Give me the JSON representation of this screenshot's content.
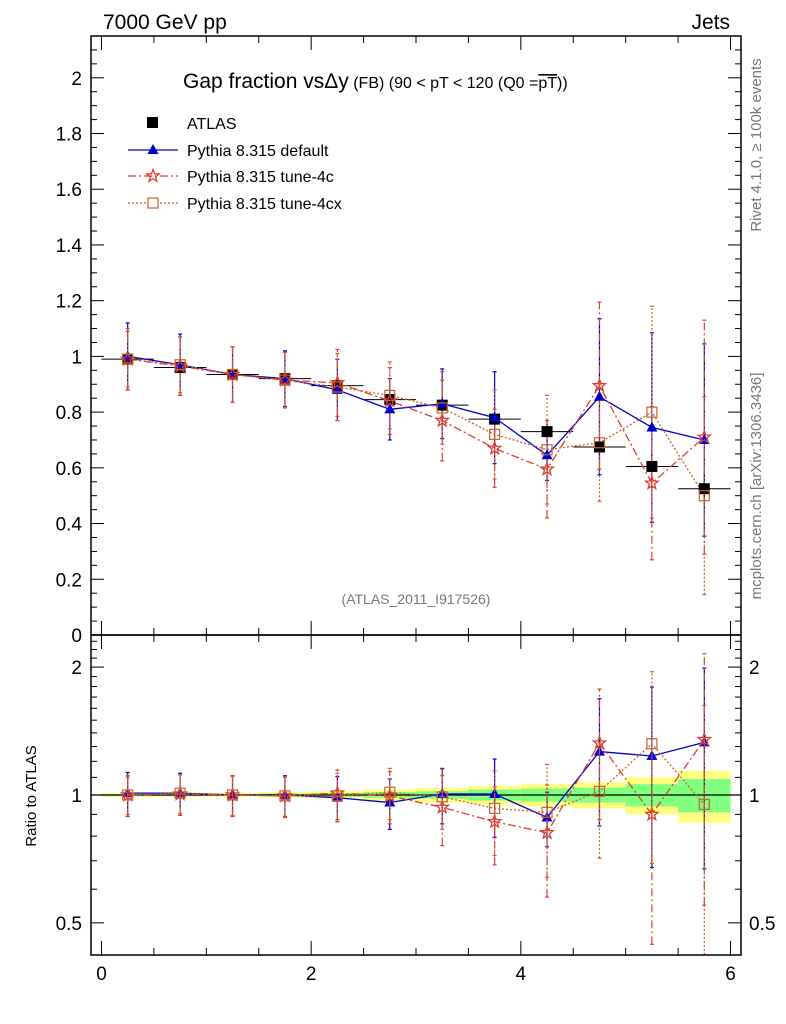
{
  "header": {
    "left": "7000 GeV pp",
    "right": "Jets"
  },
  "side": {
    "rivet": "Rivet 4.1.0, ≥ 100k events",
    "mcplots": "mcplots.cern.ch [arXiv:1306.3436]"
  },
  "colors": {
    "atlas": "#000000",
    "default": "#0000cc",
    "tune4c": "#e03c32",
    "tune4cx": "#c8642a",
    "band_yellow": "#ffff80",
    "band_green": "#80ff80"
  },
  "chart_data": {
    "type": "scatter",
    "title": {
      "main": "Gap fraction vs",
      "delta": "Δy",
      "fb": " (FB)",
      "range": " (90 < pT < 120 (Q0 =",
      "q0": "pT",
      "close": "))"
    },
    "annotation": "(ATLAS_2011_I917526)",
    "xlim": [
      -0.1,
      6.1
    ],
    "main": {
      "ylim": [
        0,
        2.15
      ],
      "yticks": [
        {
          "v": 0,
          "label": "0"
        },
        {
          "v": 0.2,
          "label": "0.2"
        },
        {
          "v": 0.4,
          "label": "0.4"
        },
        {
          "v": 0.6,
          "label": "0.6"
        },
        {
          "v": 0.8,
          "label": "0.8"
        },
        {
          "v": 1.0,
          "label": "1"
        },
        {
          "v": 1.2,
          "label": "1.2"
        },
        {
          "v": 1.4,
          "label": "1.4"
        },
        {
          "v": 1.6,
          "label": "1.6"
        },
        {
          "v": 1.8,
          "label": "1.8"
        },
        {
          "v": 2.0,
          "label": "2"
        }
      ]
    },
    "ratio": {
      "ylabel": "Ratio to ATLAS",
      "ylim": [
        0.42,
        2.38
      ],
      "log": true,
      "yticks": [
        {
          "v": 0.5,
          "label": "0.5"
        },
        {
          "v": 1,
          "label": "1"
        },
        {
          "v": 2,
          "label": "2"
        }
      ]
    },
    "xticks": [
      {
        "v": 0,
        "label": "0"
      },
      {
        "v": 2,
        "label": "2"
      },
      {
        "v": 4,
        "label": "4"
      },
      {
        "v": 6,
        "label": "6"
      }
    ],
    "x": [
      0.25,
      0.75,
      1.25,
      1.75,
      2.25,
      2.75,
      3.25,
      3.75,
      4.25,
      4.75,
      5.25,
      5.75
    ],
    "xerr": 0.25,
    "data": {
      "name": "ATLAS",
      "values": [
        0.99,
        0.96,
        0.935,
        0.92,
        0.895,
        0.845,
        0.825,
        0.775,
        0.73,
        0.675,
        0.605,
        0.525
      ],
      "err": [
        0.01,
        0.01,
        0.01,
        0.01,
        0.01,
        0.015,
        0.02,
        0.025,
        0.04,
        0.04,
        0.05,
        0.06
      ]
    },
    "series": [
      {
        "name": "Pythia 8.315 default",
        "style": "default",
        "marker": "triangle",
        "values": [
          1.0,
          0.97,
          0.935,
          0.92,
          0.88,
          0.81,
          0.83,
          0.78,
          0.645,
          0.855,
          0.745,
          0.7
        ],
        "err": [
          0.12,
          0.11,
          0.1,
          0.1,
          0.11,
          0.11,
          0.125,
          0.165,
          0.09,
          0.28,
          0.34,
          0.345
        ]
      },
      {
        "name": "Pythia 8.315 tune-4c",
        "style": "tune4c",
        "marker": "star",
        "values": [
          0.99,
          0.965,
          0.935,
          0.915,
          0.905,
          0.84,
          0.77,
          0.67,
          0.595,
          0.895,
          0.545,
          0.71
        ],
        "err": [
          0.11,
          0.105,
          0.1,
          0.1,
          0.12,
          0.12,
          0.145,
          0.14,
          0.175,
          0.3,
          0.275,
          0.42
        ]
      },
      {
        "name": "Pythia 8.315 tune-4cx",
        "style": "tune4cx",
        "marker": "square-open",
        "values": [
          0.99,
          0.97,
          0.935,
          0.915,
          0.89,
          0.86,
          0.815,
          0.72,
          0.665,
          0.69,
          0.8,
          0.5
        ],
        "err": [
          0.1,
          0.1,
          0.1,
          0.1,
          0.12,
          0.12,
          0.13,
          0.16,
          0.195,
          0.21,
          0.38,
          0.355
        ]
      }
    ],
    "ratio_values": [
      {
        "style": "default",
        "values": [
          1.01,
          1.01,
          1.0,
          1.0,
          0.985,
          0.96,
          1.005,
          1.005,
          0.885,
          1.265,
          1.235,
          1.33
        ],
        "err": [
          0.12,
          0.115,
          0.11,
          0.11,
          0.12,
          0.13,
          0.15,
          0.21,
          0.13,
          0.42,
          0.56,
          0.66
        ]
      },
      {
        "style": "tune4c",
        "values": [
          1.0,
          1.005,
          1.0,
          0.995,
          1.01,
          0.995,
          0.935,
          0.865,
          0.815,
          1.325,
          0.9,
          1.35
        ],
        "err": [
          0.11,
          0.11,
          0.11,
          0.11,
          0.135,
          0.14,
          0.175,
          0.18,
          0.24,
          0.45,
          0.455,
          0.8
        ]
      },
      {
        "style": "tune4cx",
        "values": [
          1.0,
          1.01,
          1.0,
          0.995,
          0.995,
          1.015,
          0.99,
          0.93,
          0.91,
          1.02,
          1.32,
          0.95
        ],
        "err": [
          0.1,
          0.105,
          0.105,
          0.105,
          0.13,
          0.14,
          0.16,
          0.21,
          0.27,
          0.31,
          0.63,
          0.675
        ]
      }
    ],
    "bands": {
      "yellow": [
        0.01,
        0.01,
        0.01,
        0.015,
        0.02,
        0.03,
        0.04,
        0.05,
        0.06,
        0.07,
        0.1,
        0.14
      ],
      "green": [
        0.005,
        0.005,
        0.005,
        0.008,
        0.01,
        0.015,
        0.02,
        0.03,
        0.035,
        0.04,
        0.06,
        0.09
      ]
    }
  }
}
